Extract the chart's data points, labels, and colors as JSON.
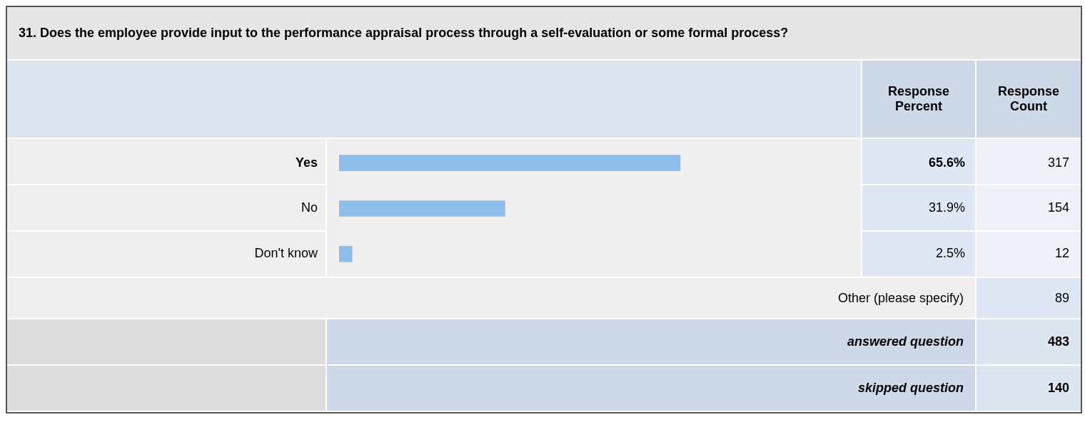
{
  "chart_data": {
    "type": "bar",
    "orientation": "horizontal",
    "title": "31. Does the employee provide input to the performance appraisal process through a self-evaluation or some formal process?",
    "categories": [
      "Yes",
      "No",
      "Don't know"
    ],
    "values": [
      65.6,
      31.9,
      2.5
    ],
    "value_labels": [
      "65.6%",
      "31.9%",
      "2.5%"
    ],
    "color": "#8dbde9",
    "tick_labels": "y",
    "grid": false,
    "legend": false,
    "annotations": [
      "Response Percent",
      "Response Count",
      "317",
      "154",
      "12",
      "Other (please specify)",
      "89",
      "answered question",
      "483",
      "skipped question",
      "140"
    ]
  }
}
